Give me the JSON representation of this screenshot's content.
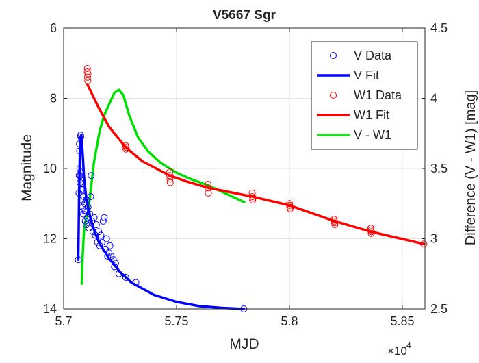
{
  "chart_data": {
    "type": "line",
    "title": "V5667 Sgr",
    "xlabel": "MJD",
    "ylabel_left": "Magnitude",
    "ylabel_right": "Difference (V - W1) [mag]",
    "x_multiplier_label": "×10",
    "x_multiplier_exp": "4",
    "xlim": [
      5.7,
      5.86
    ],
    "ylim_left": [
      14,
      6
    ],
    "ylim_left_reversed": true,
    "ylim_right": [
      2.5,
      4.5
    ],
    "grid": true,
    "legend_position": "top-right",
    "x_ticks": [
      "5.7",
      "5.75",
      "5.8",
      "5.85"
    ],
    "x_tick_values": [
      5.7,
      5.75,
      5.8,
      5.85
    ],
    "y_left_ticks": [
      "6",
      "8",
      "10",
      "12",
      "14"
    ],
    "y_left_tick_values": [
      6,
      8,
      10,
      12,
      14
    ],
    "y_right_ticks": [
      "2.5",
      "3",
      "3.5",
      "4",
      "4.5"
    ],
    "y_right_tick_values": [
      2.5,
      3,
      3.5,
      4,
      4.5
    ],
    "colors": {
      "v": "#0000ff",
      "v_fit": "#0000ff",
      "w1": "#ff0000",
      "w1_fit": "#ff0000",
      "diff": "#00e000",
      "grid": "#e3e3e3",
      "axis": "#262626"
    },
    "legend": [
      {
        "label": "V Data",
        "kind": "marker",
        "color": "#0000ff"
      },
      {
        "label": "V Fit",
        "kind": "line",
        "color": "#0000ff"
      },
      {
        "label": "W1 Data",
        "kind": "marker",
        "color": "#ff0000"
      },
      {
        "label": "W1 Fit",
        "kind": "line",
        "color": "#ff0000"
      },
      {
        "label": "V - W1",
        "kind": "line",
        "color": "#22dd22"
      }
    ],
    "series": [
      {
        "key": "v_data",
        "axis": "left",
        "kind": "scatter",
        "points": [
          [
            5.7065,
            12.6
          ],
          [
            5.7068,
            10.7
          ],
          [
            5.7069,
            10.2
          ],
          [
            5.707,
            9.3
          ],
          [
            5.7071,
            9.5
          ],
          [
            5.7072,
            10.0
          ],
          [
            5.7073,
            10.4
          ],
          [
            5.7074,
            10.2
          ],
          [
            5.7075,
            9.05
          ],
          [
            5.7076,
            9.1
          ],
          [
            5.7077,
            10.1
          ],
          [
            5.7078,
            10.6
          ],
          [
            5.708,
            10.3
          ],
          [
            5.7082,
            10.9
          ],
          [
            5.7084,
            11.1
          ],
          [
            5.7086,
            10.6
          ],
          [
            5.7088,
            11.3
          ],
          [
            5.709,
            10.8
          ],
          [
            5.7092,
            11.2
          ],
          [
            5.7094,
            11.0
          ],
          [
            5.7096,
            11.5
          ],
          [
            5.7098,
            11.2
          ],
          [
            5.71,
            11.6
          ],
          [
            5.7102,
            10.9
          ],
          [
            5.7105,
            11.4
          ],
          [
            5.7108,
            11.1
          ],
          [
            5.7112,
            11.7
          ],
          [
            5.7116,
            11.3
          ],
          [
            5.712,
            10.8
          ],
          [
            5.7122,
            10.2
          ],
          [
            5.7125,
            11.5
          ],
          [
            5.713,
            11.8
          ],
          [
            5.7135,
            11.4
          ],
          [
            5.714,
            11.9
          ],
          [
            5.7145,
            11.6
          ],
          [
            5.715,
            12.1
          ],
          [
            5.7155,
            11.8
          ],
          [
            5.716,
            12.2
          ],
          [
            5.7165,
            11.9
          ],
          [
            5.717,
            12.1
          ],
          [
            5.7175,
            11.5
          ],
          [
            5.718,
            11.4
          ],
          [
            5.7185,
            12.3
          ],
          [
            5.719,
            12.0
          ],
          [
            5.7195,
            12.5
          ],
          [
            5.72,
            12.4
          ],
          [
            5.7205,
            12.2
          ],
          [
            5.721,
            12.5
          ],
          [
            5.722,
            12.6
          ],
          [
            5.7225,
            12.8
          ],
          [
            5.723,
            12.7
          ],
          [
            5.7245,
            13.0
          ],
          [
            5.7275,
            13.1
          ],
          [
            5.732,
            13.25
          ],
          [
            5.7798,
            14.0
          ]
        ]
      },
      {
        "key": "v_fit",
        "axis": "left",
        "kind": "line",
        "points": [
          [
            5.7065,
            12.6
          ],
          [
            5.7068,
            11.0
          ],
          [
            5.707,
            10.2
          ],
          [
            5.7072,
            9.55
          ],
          [
            5.7075,
            9.1
          ],
          [
            5.7078,
            9.05
          ],
          [
            5.708,
            9.15
          ],
          [
            5.7085,
            9.65
          ],
          [
            5.709,
            10.2
          ],
          [
            5.71,
            10.85
          ],
          [
            5.712,
            11.45
          ],
          [
            5.714,
            11.85
          ],
          [
            5.716,
            12.15
          ],
          [
            5.718,
            12.35
          ],
          [
            5.72,
            12.55
          ],
          [
            5.725,
            12.95
          ],
          [
            5.73,
            13.25
          ],
          [
            5.74,
            13.6
          ],
          [
            5.75,
            13.8
          ],
          [
            5.76,
            13.92
          ],
          [
            5.77,
            13.97
          ],
          [
            5.7798,
            14.0
          ]
        ]
      },
      {
        "key": "w1_data",
        "axis": "left",
        "kind": "scatter",
        "points": [
          [
            5.7105,
            7.15
          ],
          [
            5.7105,
            7.25
          ],
          [
            5.7106,
            7.4
          ],
          [
            5.7107,
            7.5
          ],
          [
            5.7108,
            7.3
          ],
          [
            5.7275,
            9.35
          ],
          [
            5.7276,
            9.45
          ],
          [
            5.7277,
            9.4
          ],
          [
            5.747,
            10.1
          ],
          [
            5.747,
            10.2
          ],
          [
            5.7471,
            10.3
          ],
          [
            5.7472,
            10.4
          ],
          [
            5.764,
            10.45
          ],
          [
            5.764,
            10.55
          ],
          [
            5.7641,
            10.7
          ],
          [
            5.7835,
            10.7
          ],
          [
            5.7836,
            10.8
          ],
          [
            5.7837,
            10.9
          ],
          [
            5.7838,
            10.85
          ],
          [
            5.8,
            11.0
          ],
          [
            5.8001,
            11.05
          ],
          [
            5.8002,
            11.1
          ],
          [
            5.8003,
            11.15
          ],
          [
            5.8198,
            11.45
          ],
          [
            5.8199,
            11.5
          ],
          [
            5.82,
            11.55
          ],
          [
            5.8201,
            11.6
          ],
          [
            5.836,
            11.7
          ],
          [
            5.8361,
            11.75
          ],
          [
            5.8362,
            11.85
          ],
          [
            5.8363,
            11.8
          ],
          [
            5.8595,
            12.15
          ]
        ]
      },
      {
        "key": "w1_fit",
        "axis": "left",
        "kind": "line",
        "points": [
          [
            5.7105,
            7.6
          ],
          [
            5.715,
            8.2
          ],
          [
            5.72,
            8.8
          ],
          [
            5.7275,
            9.4
          ],
          [
            5.735,
            9.8
          ],
          [
            5.747,
            10.2
          ],
          [
            5.755,
            10.38
          ],
          [
            5.764,
            10.55
          ],
          [
            5.7835,
            10.8
          ],
          [
            5.8,
            11.05
          ],
          [
            5.82,
            11.5
          ],
          [
            5.836,
            11.8
          ],
          [
            5.8595,
            12.15
          ]
        ]
      },
      {
        "key": "diff",
        "axis": "right",
        "kind": "line",
        "points": [
          [
            5.708,
            2.68
          ],
          [
            5.7085,
            2.9
          ],
          [
            5.709,
            3.05
          ],
          [
            5.71,
            3.15
          ],
          [
            5.711,
            3.2
          ],
          [
            5.712,
            3.35
          ],
          [
            5.7135,
            3.55
          ],
          [
            5.716,
            3.77
          ],
          [
            5.718,
            3.88
          ],
          [
            5.7205,
            3.97
          ],
          [
            5.7225,
            4.04
          ],
          [
            5.7245,
            4.06
          ],
          [
            5.7265,
            4.02
          ],
          [
            5.729,
            3.88
          ],
          [
            5.733,
            3.72
          ],
          [
            5.7375,
            3.62
          ],
          [
            5.743,
            3.54
          ],
          [
            5.75,
            3.47
          ],
          [
            5.757,
            3.42
          ],
          [
            5.764,
            3.38
          ],
          [
            5.772,
            3.32
          ],
          [
            5.78,
            3.26
          ]
        ]
      }
    ]
  }
}
